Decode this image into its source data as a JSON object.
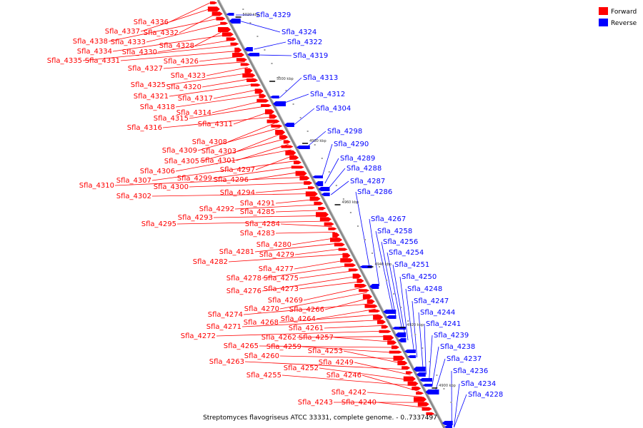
{
  "legend": {
    "forward_label": "Forward",
    "reverse_label": "Reverse",
    "forward_color": "#ff0000",
    "reverse_color": "#0000ff"
  },
  "caption": "Streptomyces flavogriseus ATCC 33331, complete genome. - 0..7337497",
  "ticks": [
    "5020 kbp",
    "5000 kbp",
    "4980 kbp",
    "4960 kbp",
    "4940 kbp",
    "4920 kbp",
    "4900 kbp"
  ],
  "forward_labels": [
    "Sfla_4336",
    "Sfla_4337",
    "Sfla_4332",
    "Sfla_4338",
    "Sfla_4333",
    "Sfla_4328",
    "Sfla_4334",
    "Sfla_4330",
    "Sfla_4335",
    "Sfla_4331",
    "Sfla_4326",
    "Sfla_4327",
    "Sfla_4323",
    "Sfla_4325",
    "Sfla_4320",
    "Sfla_4321",
    "Sfla_4317",
    "Sfla_4318",
    "Sfla_4314",
    "Sfla_4315",
    "Sfla_4311",
    "Sfla_4316",
    "Sfla_4308",
    "Sfla_4309",
    "Sfla_4303",
    "Sfla_4305",
    "Sfla_4301",
    "Sfla_4306",
    "Sfla_4297",
    "Sfla_4307",
    "Sfla_4299",
    "Sfla_4296",
    "Sfla_4310",
    "Sfla_4300",
    "Sfla_4294",
    "Sfla_4302",
    "Sfla_4291",
    "Sfla_4292",
    "Sfla_4285",
    "Sfla_4293",
    "Sfla_4295",
    "Sfla_4284",
    "Sfla_4283",
    "Sfla_4280",
    "Sfla_4281",
    "Sfla_4279",
    "Sfla_4282",
    "Sfla_4277",
    "Sfla_4278",
    "Sfla_4275",
    "Sfla_4276",
    "Sfla_4273",
    "Sfla_4269",
    "Sfla_4270",
    "Sfla_4266",
    "Sfla_4274",
    "Sfla_4264",
    "Sfla_4268",
    "Sfla_4271",
    "Sfla_4261",
    "Sfla_4272",
    "Sfla_4262",
    "Sfla_4257",
    "Sfla_4265",
    "Sfla_4259",
    "Sfla_4260",
    "Sfla_4253",
    "Sfla_4263",
    "Sfla_4249",
    "Sfla_4252",
    "Sfla_4255",
    "Sfla_4246",
    "Sfla_4242",
    "Sfla_4243",
    "Sfla_4240"
  ],
  "reverse_labels": [
    "Sfla_4329",
    "Sfla_4324",
    "Sfla_4322",
    "Sfla_4319",
    "Sfla_4313",
    "Sfla_4312",
    "Sfla_4304",
    "Sfla_4298",
    "Sfla_4290",
    "Sfla_4289",
    "Sfla_4288",
    "Sfla_4287",
    "Sfla_4286",
    "Sfla_4267",
    "Sfla_4258",
    "Sfla_4256",
    "Sfla_4254",
    "Sfla_4251",
    "Sfla_4250",
    "Sfla_4248",
    "Sfla_4247",
    "Sfla_4244",
    "Sfla_4241",
    "Sfla_4239",
    "Sfla_4238",
    "Sfla_4237",
    "Sfla_4236",
    "Sfla_4234",
    "Sfla_4228"
  ]
}
